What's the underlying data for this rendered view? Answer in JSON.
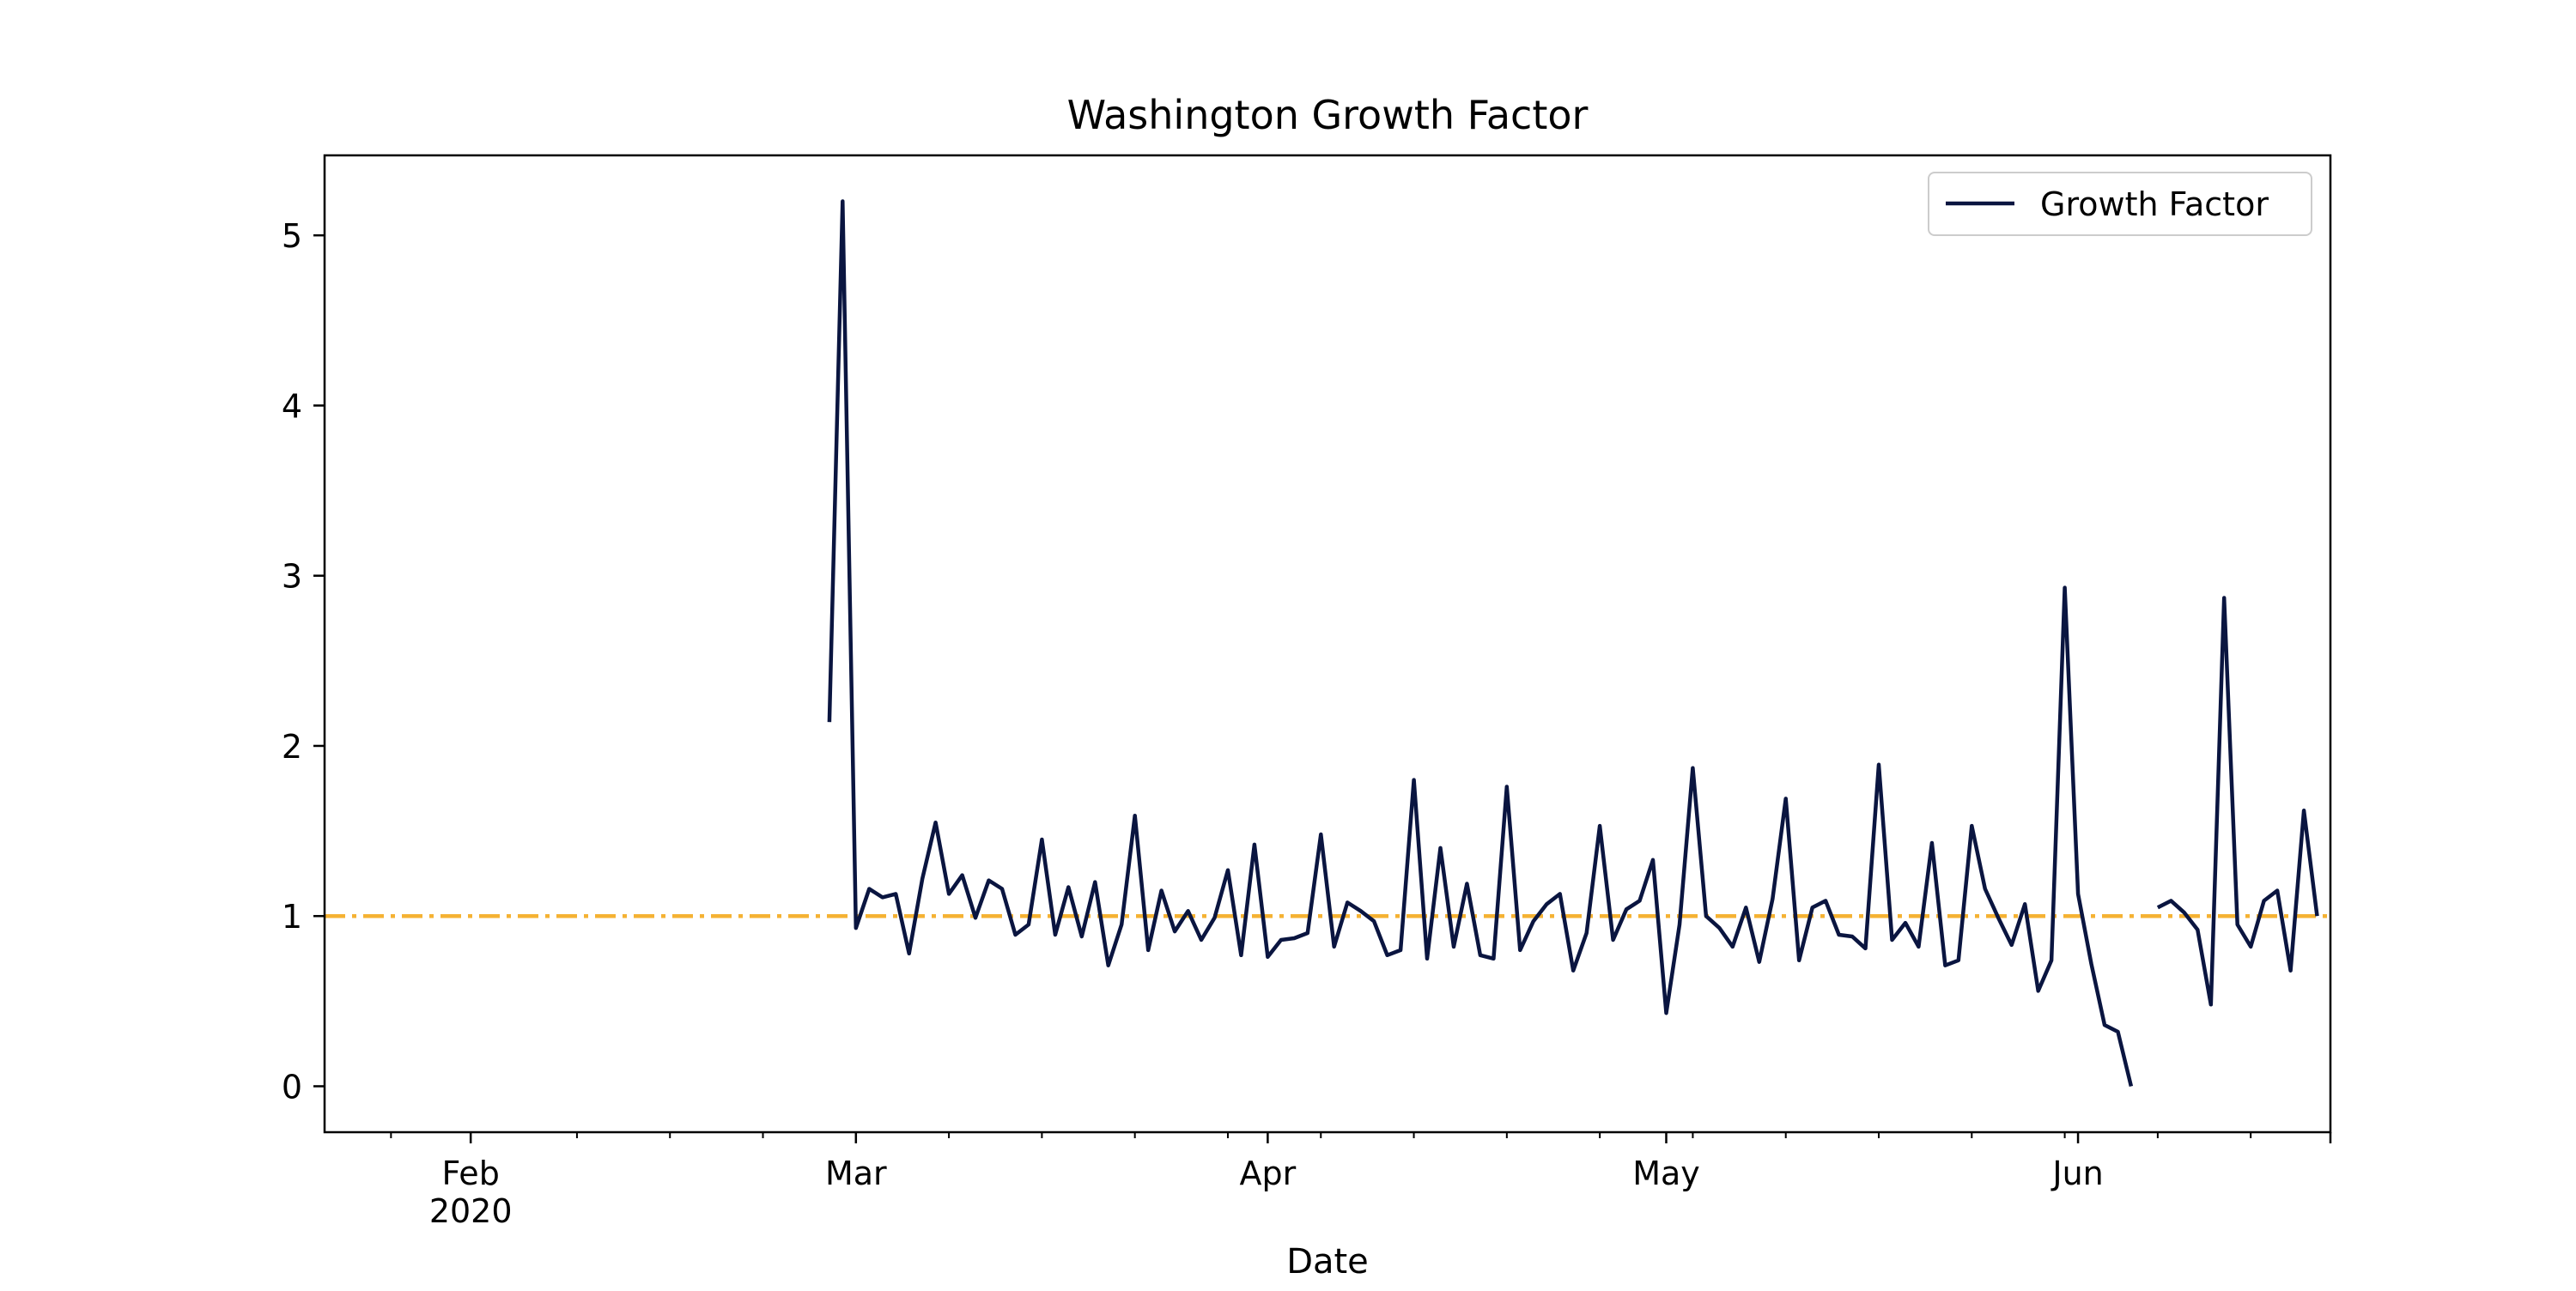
{
  "chart_data": {
    "type": "line",
    "title": "Washington Growth Factor",
    "xlabel": "Date",
    "ylabel": "",
    "x_type": "date",
    "xlim": [
      "2020-01-21",
      "2020-06-20"
    ],
    "ylim": [
      -0.27,
      5.47
    ],
    "y_ticks": [
      0,
      1,
      2,
      3,
      4,
      5
    ],
    "x_major_ticks": [
      {
        "date": "2020-02-01",
        "label": "Feb",
        "sublabel": "2020"
      },
      {
        "date": "2020-03-01",
        "label": "Mar",
        "sublabel": ""
      },
      {
        "date": "2020-04-01",
        "label": "Apr",
        "sublabel": ""
      },
      {
        "date": "2020-05-01",
        "label": "May",
        "sublabel": ""
      },
      {
        "date": "2020-06-01",
        "label": "Jun",
        "sublabel": ""
      }
    ],
    "x_minor_ticks": [
      "2020-01-26",
      "2020-02-09",
      "2020-02-16",
      "2020-02-23",
      "2020-03-08",
      "2020-03-15",
      "2020-03-22",
      "2020-03-29",
      "2020-04-05",
      "2020-04-12",
      "2020-04-19",
      "2020-04-26",
      "2020-05-03",
      "2020-05-10",
      "2020-05-17",
      "2020-05-24",
      "2020-05-31",
      "2020-06-07",
      "2020-06-14"
    ],
    "grid": false,
    "legend": {
      "position": "top-right",
      "entries": [
        "Growth Factor"
      ]
    },
    "colors": {
      "series": "#0a1540",
      "reference": "#f5b233"
    },
    "reference_line": {
      "y": 1.0,
      "style": "dash-dot"
    },
    "series": [
      {
        "name": "Growth Factor",
        "start_date": "2020-02-28",
        "values": [
          2.14,
          5.2,
          0.93,
          1.16,
          1.11,
          1.13,
          0.78,
          1.22,
          1.55,
          1.13,
          1.24,
          0.99,
          1.21,
          1.16,
          0.89,
          0.95,
          1.45,
          0.89,
          1.17,
          0.88,
          1.2,
          0.71,
          0.95,
          1.59,
          0.8,
          1.15,
          0.91,
          1.03,
          0.86,
          0.99,
          1.27,
          0.77,
          1.42,
          0.76,
          0.86,
          0.87,
          0.9,
          1.48,
          0.82,
          1.08,
          1.03,
          0.97,
          0.77,
          0.8,
          1.8,
          0.75,
          1.4,
          0.82,
          1.19,
          0.77,
          0.75,
          1.76,
          0.8,
          0.97,
          1.07,
          1.13,
          0.68,
          0.9,
          1.53,
          0.86,
          1.04,
          1.09,
          1.33,
          0.43,
          0.95,
          1.87,
          1.0,
          0.93,
          0.82,
          1.05,
          0.73,
          1.1,
          1.69,
          0.74,
          1.05,
          1.09,
          0.89,
          0.88,
          0.81,
          1.89,
          0.86,
          0.96,
          0.82,
          1.43,
          0.71,
          0.74,
          1.53,
          1.16,
          0.99,
          0.83,
          1.07,
          0.56,
          0.74,
          2.93,
          1.13,
          0.72,
          0.36,
          0.32,
          0.0,
          null,
          1.05,
          1.09,
          1.02,
          0.92,
          0.48,
          2.87,
          0.95,
          0.82,
          1.09,
          1.15,
          0.68,
          1.62,
          1.0
        ]
      }
    ]
  }
}
